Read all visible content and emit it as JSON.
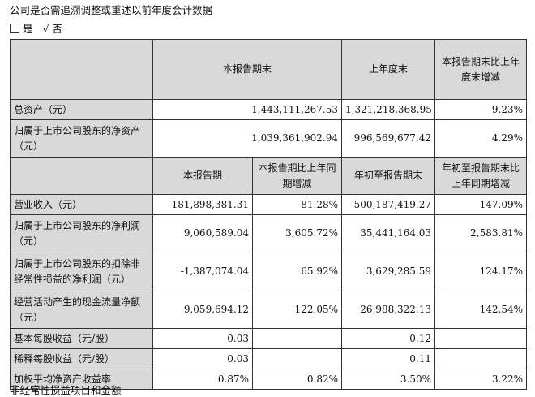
{
  "heading": "公司是否需追溯调整或重述以前年度会计数据",
  "choice": {
    "yes_label": "是",
    "check_mark": "√",
    "no_label": "否"
  },
  "balance": {
    "headers": [
      "本报告期末",
      "上年度末",
      "本报告期末比上年度末增减"
    ],
    "rows": [
      {
        "label": "总资产（元）",
        "values": [
          "1,443,111,267.53",
          "1,321,218,368.95",
          "9.23%"
        ]
      },
      {
        "label": "归属于上市公司股东的净资产（元）",
        "values": [
          "1,039,361,902.94",
          "996,569,677.42",
          "4.29%"
        ]
      }
    ]
  },
  "income": {
    "headers": [
      "本报告期",
      "本报告期比上年同期增减",
      "年初至报告期末",
      "年初至报告期末比上年同期增减"
    ],
    "rows": [
      {
        "label": "营业收入（元）",
        "values": [
          "181,898,381.31",
          "81.28%",
          "500,187,419.27",
          "147.09%"
        ]
      },
      {
        "label": "归属于上市公司股东的净利润（元）",
        "values": [
          "9,060,589.04",
          "3,605.72%",
          "35,441,164.03",
          "2,583.81%"
        ]
      },
      {
        "label": "归属于上市公司股东的扣除非经常性损益的净利润（元）",
        "values": [
          "-1,387,074.04",
          "65.92%",
          "3,629,285.59",
          "124.17%"
        ]
      },
      {
        "label": "经营活动产生的现金流量净额（元）",
        "values": [
          "9,059,694.12",
          "122.05%",
          "26,988,322.13",
          "142.54%"
        ]
      },
      {
        "label": "基本每股收益（元/股）",
        "values": [
          "0.03",
          "",
          "0.12",
          ""
        ]
      },
      {
        "label": "稀释每股收益（元/股）",
        "values": [
          "0.03",
          "",
          "0.11",
          ""
        ]
      },
      {
        "label": "加权平均净资产收益率",
        "values": [
          "0.87%",
          "0.82%",
          "3.50%",
          "3.22%"
        ]
      }
    ]
  },
  "footer_text": "非经常性损益项目和金额"
}
